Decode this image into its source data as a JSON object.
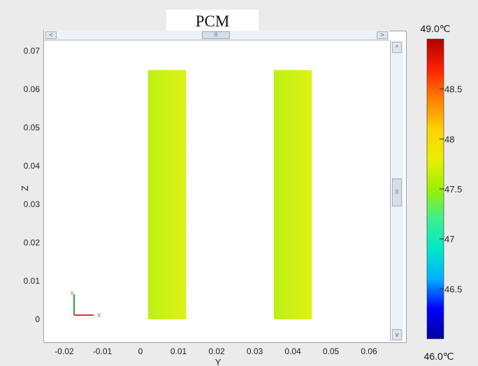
{
  "chart_data": {
    "type": "heatmap",
    "title": "PCM",
    "xlabel": "Y",
    "ylabel": "Z",
    "x_ticks": [
      "-0.02",
      "-0.01",
      "0",
      "0.01",
      "0.02",
      "0.03",
      "0.04",
      "0.05",
      "0.06"
    ],
    "y_ticks": [
      "0",
      "0.01",
      "0.02",
      "0.03",
      "0.04",
      "0.05",
      "0.06",
      "0.07"
    ],
    "x_range": [
      -0.025,
      0.067
    ],
    "y_range": [
      -0.005,
      0.074
    ],
    "grid": false,
    "regions": [
      {
        "y_min": 0.002,
        "y_max": 0.012,
        "z_min": 0.0,
        "z_max": 0.065,
        "temp_left": 47.6,
        "temp_right": 47.75
      },
      {
        "y_min": 0.035,
        "y_max": 0.045,
        "z_min": 0.0,
        "z_max": 0.065,
        "temp_left": 47.6,
        "temp_right": 47.75
      }
    ],
    "colorbar": {
      "min_label": "46.0℃",
      "max_label": "49.0℃",
      "min": 46.0,
      "max": 49.0,
      "ticks": [
        "46.5",
        "47",
        "47.5",
        "48",
        "48.5"
      ],
      "tick_values": [
        46.5,
        47.0,
        47.5,
        48.0,
        48.5
      ],
      "colors": [
        "#0000a0",
        "#0000ff",
        "#00b0ff",
        "#00e8c8",
        "#3cf08c",
        "#9cf000",
        "#e8f000",
        "#ffd000",
        "#ff8000",
        "#ff2000",
        "#b00000"
      ]
    },
    "triad": {
      "y_label": "Y",
      "x_label": "X"
    }
  },
  "ui": {
    "hscroll_left": "<",
    "hscroll_right": ">",
    "vscroll_up": "^",
    "vscroll_down": "v",
    "thumb_grip": "|||"
  }
}
